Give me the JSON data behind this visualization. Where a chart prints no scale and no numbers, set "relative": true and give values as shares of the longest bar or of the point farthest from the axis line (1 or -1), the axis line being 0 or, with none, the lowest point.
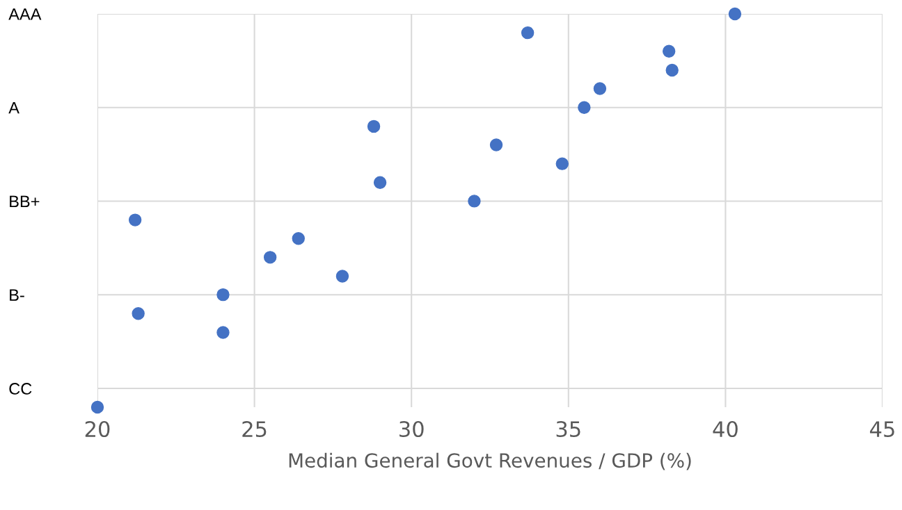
{
  "chart_data": {
    "type": "scatter",
    "xlabel": "Median General Govt Revenues / GDP (%)",
    "relative": true,
    "series": [
      {
        "color": "#4472c4",
        "x": [
          40.3,
          33.7,
          38.2,
          38.3,
          36.0,
          35.5,
          28.8,
          32.7,
          34.8,
          29.0,
          32.0,
          21.2,
          26.4,
          25.5,
          27.8,
          24.0,
          21.3,
          24.0,
          20.0
        ],
        "values": [
          1,
          0.952,
          0.905,
          0.857,
          0.81,
          0.762,
          0.714,
          0.667,
          0.619,
          0.571,
          0.524,
          0.476,
          0.429,
          0.381,
          0.333,
          0.286,
          0.238,
          0.19,
          0
        ]
      }
    ],
    "xlim": [
      20,
      45
    ],
    "xticks": [
      20,
      25,
      30,
      35,
      40,
      45
    ],
    "y_categories": [
      "AAA",
      null,
      null,
      null,
      null,
      "A",
      null,
      null,
      null,
      null,
      "BB+",
      null,
      null,
      null,
      null,
      "B-",
      null,
      null,
      null,
      null,
      "CC",
      null
    ],
    "grid": true,
    "marker": "circle"
  }
}
